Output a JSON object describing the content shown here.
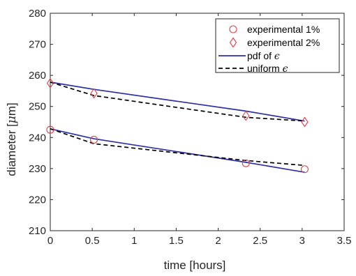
{
  "chart_data": {
    "type": "line",
    "xlabel": "time [hours]",
    "ylabel_prefix": "diameter [",
    "ylabel_symbol": "μ",
    "ylabel_suffix": "m]",
    "xlim": [
      0,
      3.5
    ],
    "ylim": [
      210,
      280
    ],
    "xticks": [
      0,
      0.5,
      1,
      1.5,
      2,
      2.5,
      3,
      3.5
    ],
    "xtick_labels": [
      "0",
      "0.5",
      "1",
      "1.5",
      "2",
      "2.5",
      "3",
      "3.5"
    ],
    "yticks": [
      210,
      220,
      230,
      240,
      250,
      260,
      270,
      280
    ],
    "ytick_labels": [
      "210",
      "220",
      "230",
      "240",
      "250",
      "260",
      "270",
      "280"
    ],
    "grid": false,
    "legend_position": "top-right",
    "colors": {
      "experimental": "#e0424a",
      "pdf": "#2b2fa8",
      "uniform": "#000000",
      "axes": "#262626"
    },
    "legend": [
      {
        "label": "experimental 1%",
        "marker": "circle"
      },
      {
        "label": "experimental 2%",
        "marker": "diamond"
      },
      {
        "label_prefix": "pdf of ",
        "label_symbol": "ϵ",
        "line": "solid"
      },
      {
        "label_prefix": "uniform ",
        "label_symbol": "ϵ",
        "line": "dashed"
      }
    ],
    "series": [
      {
        "name": "experimental 1%",
        "marker": "circle",
        "x": [
          0,
          0.52,
          2.33,
          3.03
        ],
        "y": [
          242.5,
          239.3,
          231.7,
          229.8
        ]
      },
      {
        "name": "experimental 2%",
        "marker": "diamond",
        "x": [
          0,
          0.52,
          2.33,
          3.03
        ],
        "y": [
          257.5,
          254.2,
          247.0,
          245.0
        ]
      },
      {
        "name": "pdf of ϵ",
        "line": "solid",
        "x": [
          0,
          0.52,
          2.33,
          3.03
        ],
        "y": [
          242.8,
          239.6,
          232.0,
          228.8
        ]
      },
      {
        "name": "pdf of ϵ",
        "line": "solid",
        "x": [
          0,
          0.52,
          2.33,
          3.03
        ],
        "y": [
          257.8,
          255.5,
          248.5,
          245.3
        ]
      },
      {
        "name": "uniform ϵ",
        "line": "dashed",
        "x": [
          0,
          0.52,
          2.33,
          3.03
        ],
        "y": [
          242.8,
          238.0,
          232.6,
          231.0
        ]
      },
      {
        "name": "uniform ϵ",
        "line": "dashed",
        "x": [
          0,
          0.52,
          2.33,
          3.03
        ],
        "y": [
          257.8,
          253.5,
          246.5,
          245.3
        ]
      }
    ]
  }
}
